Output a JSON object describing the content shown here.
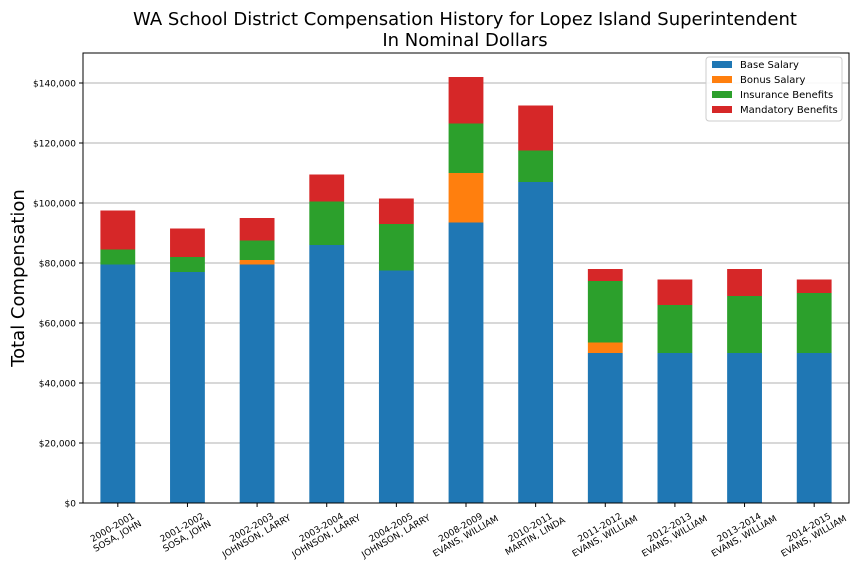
{
  "chart_data": {
    "type": "bar",
    "stacked": true,
    "title": "WA School District Compensation History for Lopez Island Superintendent",
    "subtitle": "In Nominal Dollars",
    "xlabel": "",
    "ylabel": "Total Compensation",
    "ylim": [
      0,
      150000
    ],
    "yticks": [
      0,
      20000,
      40000,
      60000,
      80000,
      100000,
      120000,
      140000
    ],
    "ytick_labels": [
      "$0",
      "$20,000",
      "$40,000",
      "$60,000",
      "$80,000",
      "$100,000",
      "$120,000",
      "$140,000"
    ],
    "grid": "horizontal",
    "legend_position": "top-right",
    "categories": [
      [
        "2000-2001",
        "SOSA, JOHN"
      ],
      [
        "2001-2002",
        "SOSA, JOHN"
      ],
      [
        "2002-2003",
        "JOHNSON, LARRY"
      ],
      [
        "2003-2004",
        "JOHNSON, LARRY"
      ],
      [
        "2004-2005",
        "JOHNSON, LARRY"
      ],
      [
        "2008-2009",
        "EVANS, WILLIAM"
      ],
      [
        "2010-2011",
        "MARTIN, LINDA"
      ],
      [
        "2011-2012",
        "EVANS, WILLIAM"
      ],
      [
        "2012-2013",
        "EVANS, WILLIAM"
      ],
      [
        "2013-2014",
        "EVANS, WILLIAM"
      ],
      [
        "2014-2015",
        "EVANS, WILLIAM"
      ]
    ],
    "series": [
      {
        "name": "Base Salary",
        "color": "#1f77b4",
        "values": [
          79500,
          77000,
          79500,
          86000,
          77500,
          93500,
          107000,
          50000,
          50000,
          50000,
          50000
        ]
      },
      {
        "name": "Bonus Salary",
        "color": "#ff7f0e",
        "values": [
          0,
          0,
          1500,
          0,
          0,
          16500,
          0,
          3500,
          0,
          0,
          0
        ]
      },
      {
        "name": "Insurance Benefits",
        "color": "#2ca02c",
        "values": [
          5000,
          5000,
          6500,
          14500,
          15500,
          16500,
          10500,
          20500,
          16000,
          19000,
          20000
        ]
      },
      {
        "name": "Mandatory Benefits",
        "color": "#d62728",
        "values": [
          13000,
          9500,
          7500,
          9000,
          8500,
          15500,
          15000,
          4000,
          8500,
          9000,
          4500
        ]
      }
    ]
  }
}
